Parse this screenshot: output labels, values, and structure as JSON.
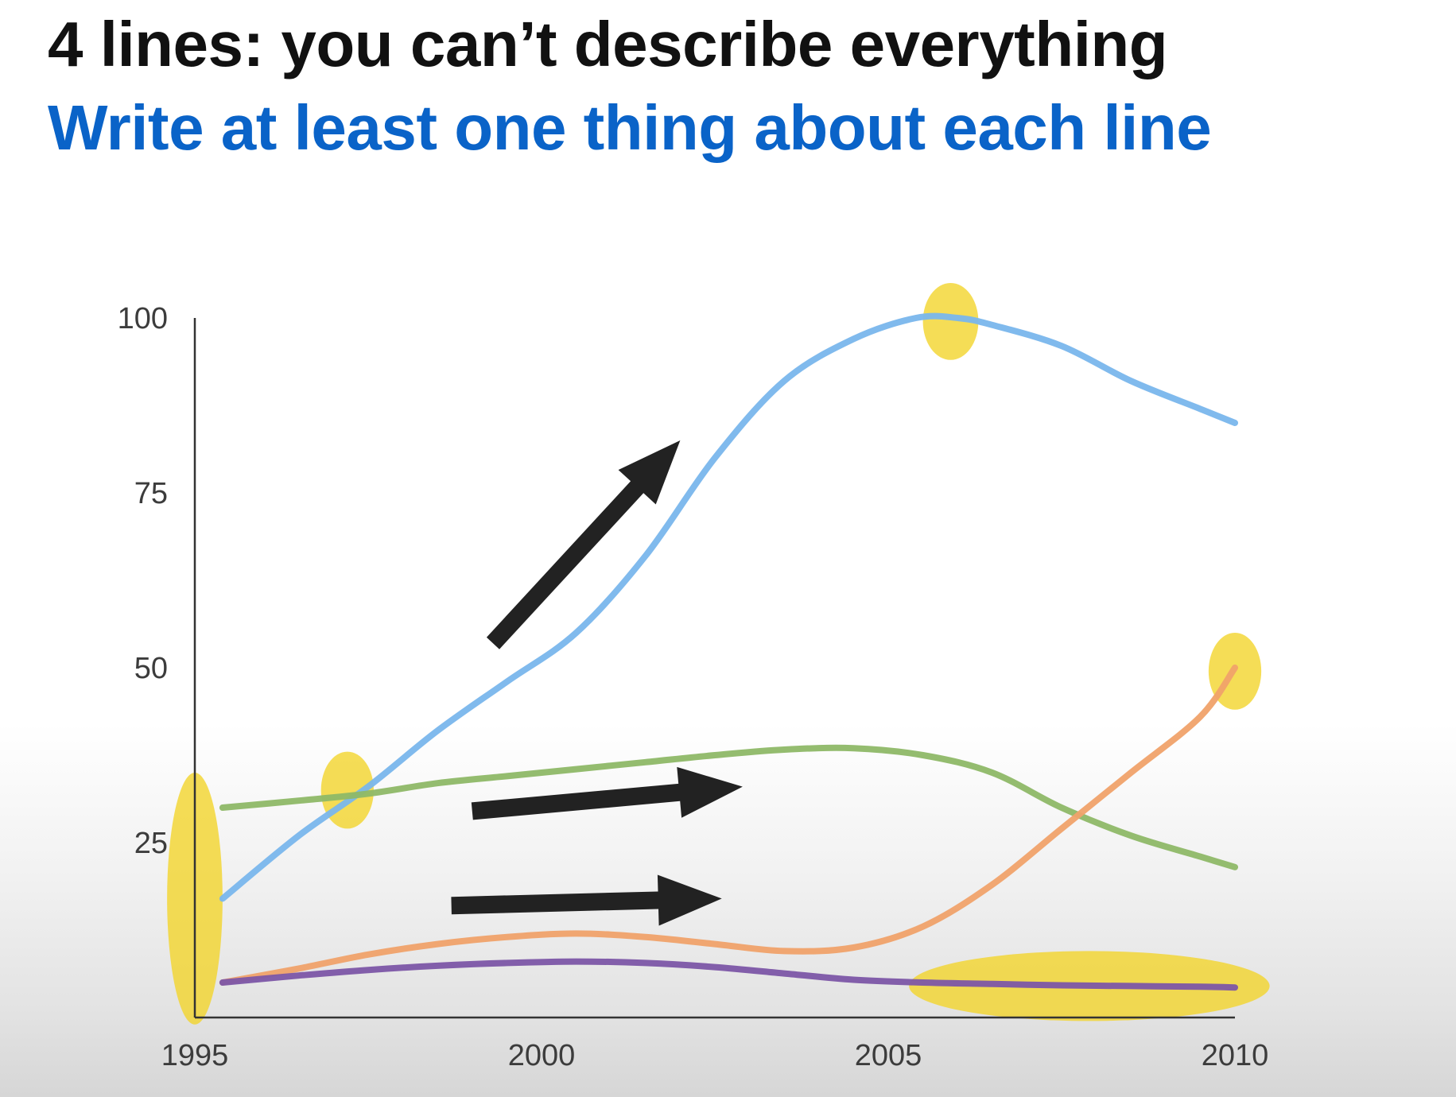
{
  "slide": {
    "title": "4 lines: you can’t describe everything",
    "subtitle": "Write at least one thing about each line"
  },
  "colors": {
    "title": "#111111",
    "subtitle": "#0a63c8",
    "highlight": "#f2d42c",
    "arrow": "#222222"
  },
  "chart_data": {
    "type": "line",
    "xlim": [
      1995,
      2010
    ],
    "ylim": [
      0,
      100
    ],
    "x_ticks": [
      1995,
      2000,
      2005,
      2010
    ],
    "y_ticks": [
      100,
      75,
      50,
      25
    ],
    "grid": false,
    "legend": "none",
    "series": [
      {
        "color": "#79b6ec",
        "x": [
          1995.4,
          1996.5,
          1997.5,
          1998.5,
          1999.5,
          2000.5,
          2001.5,
          2002.5,
          2003.5,
          2004.5,
          2005.4,
          2006.0,
          2006.5,
          2007.5,
          2008.5,
          2009.5,
          2010.0
        ],
        "y": [
          17,
          26,
          33,
          41,
          48,
          55,
          66,
          80,
          91,
          97,
          100,
          100,
          99,
          96,
          91,
          87,
          85
        ]
      },
      {
        "color": "#8eb867",
        "x": [
          1995.4,
          1996.5,
          1997.5,
          1998.5,
          1999.5,
          2000.5,
          2001.5,
          2002.5,
          2003.5,
          2004.5,
          2005.5,
          2006.5,
          2007.5,
          2008.5,
          2009.5,
          2010.0
        ],
        "y": [
          30,
          31,
          32,
          33.5,
          34.5,
          35.5,
          36.5,
          37.5,
          38.3,
          38.5,
          37.5,
          35,
          30,
          26,
          23,
          21.5
        ]
      },
      {
        "color": "#f0a26a",
        "x": [
          1995.4,
          1996.5,
          1997.5,
          1998.5,
          1999.5,
          2000.5,
          2001.5,
          2002.5,
          2003.5,
          2004.5,
          2005.5,
          2006.5,
          2007.5,
          2008.5,
          2009.5,
          2010.0
        ],
        "y": [
          5,
          7,
          9,
          10.5,
          11.5,
          12,
          11.5,
          10.5,
          9.5,
          10,
          13,
          19,
          27,
          35,
          43,
          50
        ]
      },
      {
        "color": "#7c56a6",
        "x": [
          1995.4,
          1996.5,
          1997.5,
          1998.5,
          1999.5,
          2000.5,
          2001.5,
          2002.5,
          2003.5,
          2004.5,
          2005.5,
          2006.5,
          2007.5,
          2008.5,
          2009.5,
          2010.0
        ],
        "y": [
          5,
          6,
          6.8,
          7.4,
          7.8,
          8,
          7.8,
          7.2,
          6.3,
          5.4,
          5,
          4.8,
          4.6,
          4.5,
          4.4,
          4.3
        ]
      }
    ],
    "highlights": [
      {
        "name": "highlight-1995-start",
        "x": 1995.0,
        "y": 17,
        "rx": 0.4,
        "ry": 18
      },
      {
        "name": "highlight-blue-green-cross",
        "x": 1997.2,
        "y": 32.5,
        "rx": 0.38,
        "ry": 5.5
      },
      {
        "name": "highlight-blue-peak",
        "x": 2005.9,
        "y": 99.5,
        "rx": 0.4,
        "ry": 5.5
      },
      {
        "name": "highlight-orange-end",
        "x": 2010.0,
        "y": 49.5,
        "rx": 0.38,
        "ry": 5.5
      },
      {
        "name": "highlight-purple-flat",
        "x": 2007.9,
        "y": 4.5,
        "rx": 2.6,
        "ry": 5
      }
    ],
    "arrows": [
      {
        "name": "arrow-blue-trend",
        "x1": 1999.3,
        "y1": 53.5,
        "x2": 2002.0,
        "y2": 82.5
      },
      {
        "name": "arrow-green-trend",
        "x1": 1999.0,
        "y1": 29.5,
        "x2": 2002.9,
        "y2": 33
      },
      {
        "name": "arrow-orange-trend",
        "x1": 1998.7,
        "y1": 16,
        "x2": 2002.6,
        "y2": 17
      }
    ]
  }
}
